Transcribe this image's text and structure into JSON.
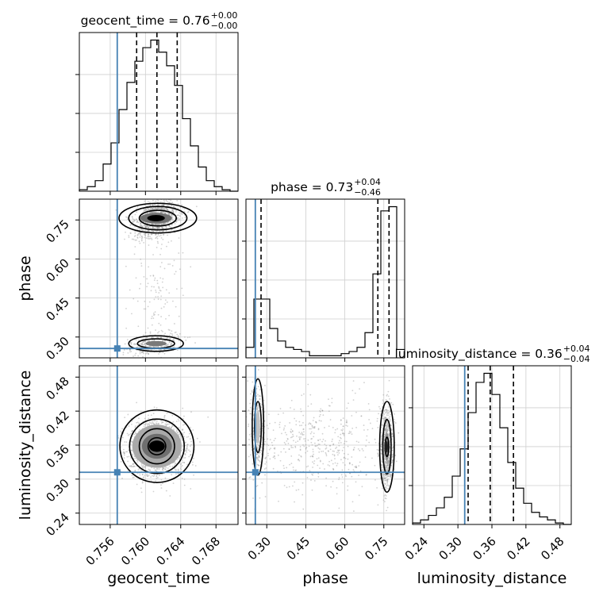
{
  "chart_data": {
    "type": "corner",
    "parameters": [
      {
        "key": "geocent_time",
        "label": "geocent_time",
        "range": [
          0.7525,
          0.7705
        ],
        "ticks": [
          0.756,
          0.76,
          0.764,
          0.768
        ],
        "tick_labels": [
          "0.756",
          "0.760",
          "0.764",
          "0.768"
        ]
      },
      {
        "key": "phase",
        "label": "phase",
        "range": [
          0.22,
          0.83
        ],
        "ticks": [
          0.3,
          0.45,
          0.6,
          0.75
        ],
        "tick_labels": [
          "0.30",
          "0.45",
          "0.60",
          "0.75"
        ]
      },
      {
        "key": "luminosity_distance",
        "label": "luminosity_distance",
        "range": [
          0.22,
          0.5
        ],
        "ticks": [
          0.24,
          0.3,
          0.36,
          0.42,
          0.48
        ],
        "tick_labels": [
          "0.24",
          "0.30",
          "0.36",
          "0.42",
          "0.48"
        ]
      }
    ],
    "titles": [
      {
        "param": "geocent_time",
        "prefix": "geocent_time = 0.76",
        "plus": "+0.00",
        "minus": "−0.00"
      },
      {
        "param": "phase",
        "prefix": "phase = 0.73",
        "plus": "+0.04",
        "minus": "−0.46"
      },
      {
        "param": "luminosity_distance",
        "prefix": "luminosity_distance = 0.36",
        "plus": "+0.04",
        "minus": "−0.04"
      }
    ],
    "truth": {
      "geocent_time": 0.7568,
      "phase": 0.256,
      "luminosity_distance": 0.312
    },
    "quantiles": {
      "geocent_time": [
        0.759,
        0.7613,
        0.7636
      ],
      "phase": [
        0.278,
        0.727,
        0.77
      ],
      "luminosity_distance": [
        0.318,
        0.357,
        0.398
      ]
    },
    "histograms": {
      "geocent_time": {
        "bins": [
          0.7525,
          0.7534,
          0.7543,
          0.7552,
          0.7561,
          0.757,
          0.7579,
          0.7588,
          0.7597,
          0.7606,
          0.7615,
          0.7624,
          0.7633,
          0.7642,
          0.7651,
          0.766,
          0.7669,
          0.7678,
          0.7687,
          0.7696,
          0.7705
        ],
        "counts": [
          1,
          3,
          7,
          18,
          32,
          54,
          72,
          86,
          95,
          100,
          92,
          83,
          70,
          48,
          30,
          16,
          7,
          3,
          1,
          0
        ]
      },
      "phase": {
        "bins": [
          0.22,
          0.2505,
          0.281,
          0.3115,
          0.342,
          0.3725,
          0.403,
          0.4335,
          0.464,
          0.4945,
          0.525,
          0.5555,
          0.586,
          0.6165,
          0.647,
          0.6775,
          0.708,
          0.7385,
          0.769,
          0.7995,
          0.83
        ],
        "counts": [
          5,
          28,
          28,
          14,
          8,
          5,
          4,
          3,
          1,
          1,
          1,
          1,
          2,
          3,
          5,
          12,
          40,
          70,
          72,
          4
        ]
      },
      "luminosity_distance": {
        "bins": [
          0.22,
          0.234,
          0.248,
          0.262,
          0.276,
          0.29,
          0.304,
          0.318,
          0.332,
          0.346,
          0.36,
          0.374,
          0.388,
          0.402,
          0.416,
          0.43,
          0.444,
          0.458,
          0.472,
          0.486,
          0.5
        ],
        "counts": [
          1,
          3,
          6,
          11,
          18,
          32,
          50,
          74,
          94,
          100,
          86,
          64,
          41,
          24,
          14,
          8,
          5,
          3,
          1,
          0
        ]
      }
    },
    "colors": {
      "truth": "#4682b4",
      "line": "#000000",
      "grid": "#cfcfcf",
      "points": "#9a9a9a"
    },
    "grid": true
  }
}
